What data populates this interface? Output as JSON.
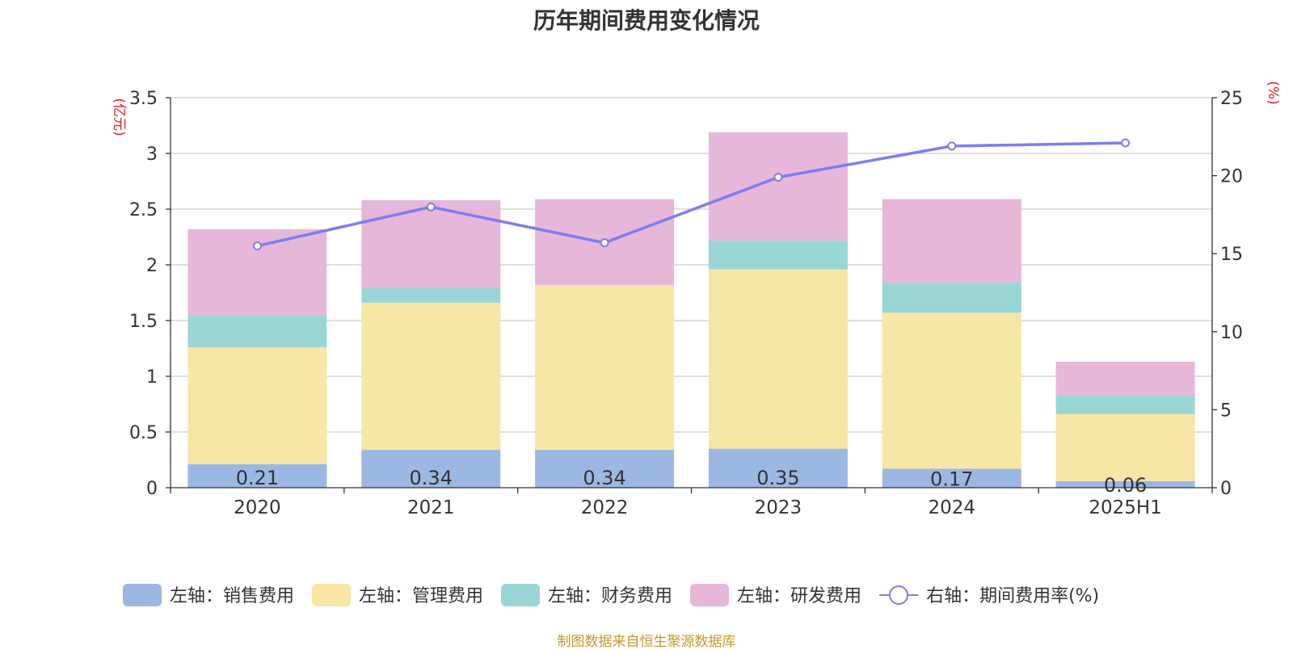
{
  "chart_data": {
    "type": "bar",
    "title": "历年期间费用变化情况",
    "categories": [
      "2020",
      "2021",
      "2022",
      "2023",
      "2024",
      "2025H1"
    ],
    "left_axis": {
      "unit_label": "(亿元)",
      "ylim": [
        0,
        3.5
      ],
      "ticks": [
        "0",
        "0.5",
        "1",
        "1.5",
        "2",
        "2.5",
        "3",
        "3.5"
      ]
    },
    "right_axis": {
      "unit_label": "(%)",
      "ylim": [
        0,
        25
      ],
      "ticks": [
        "0",
        "5",
        "10",
        "15",
        "20",
        "25"
      ]
    },
    "series": [
      {
        "name": "左轴：销售费用",
        "type": "bar",
        "axis": "left",
        "color": "#9bb8e2",
        "values": [
          0.21,
          0.34,
          0.34,
          0.35,
          0.17,
          0.06
        ],
        "labels": [
          "0.21",
          "0.34",
          "0.34",
          "0.35",
          "0.17",
          "0.06"
        ]
      },
      {
        "name": "左轴：管理费用",
        "type": "bar",
        "axis": "left",
        "color": "#f7e6a5",
        "values": [
          1.05,
          1.32,
          1.48,
          1.61,
          1.4,
          0.6
        ]
      },
      {
        "name": "左轴：财务费用",
        "type": "bar",
        "axis": "left",
        "color": "#99d5d4",
        "values": [
          0.29,
          0.13,
          0.0,
          0.26,
          0.27,
          0.17
        ]
      },
      {
        "name": "左轴：研发费用",
        "type": "bar",
        "axis": "left",
        "color": "#e6b7d8",
        "values": [
          0.77,
          0.79,
          0.77,
          0.97,
          0.75,
          0.3
        ]
      },
      {
        "name": "右轴：期间费用率(%)",
        "type": "line",
        "axis": "right",
        "color": "#7b7df2",
        "values": [
          15.5,
          18.0,
          15.7,
          19.9,
          21.9,
          22.1
        ]
      }
    ],
    "grid": true,
    "legend_position": "bottom"
  },
  "footer": "制图数据来自恒生聚源数据库"
}
